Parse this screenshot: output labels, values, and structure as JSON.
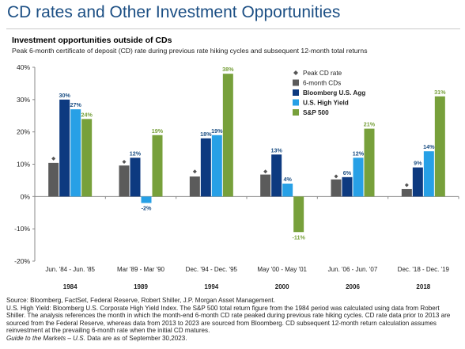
{
  "header": {
    "title": "CD rates and Other Investment Opportunities",
    "subtitle": "Investment opportunities outside of CDs",
    "description": "Peak 6-month certificate of deposit (CD) rate during previous rate hiking cycles and subsequent 12-month total returns"
  },
  "footer": {
    "source": "Source: Bloomberg, FactSet, Federal Reserve, Robert Shiller, J.P. Morgan Asset Management.",
    "note": "U.S. High Yield: Bloomberg U.S. Corporate High Yield Index. The S&P 500 total return figure from the 1984 period was calculated using data from Robert Shiller. The analysis references the month in which the month-end 6-month CD rate peaked during previous rate hiking cycles. CD rate data prior to 2013 are sourced from the Federal Reserve, whereas data from 2013 to 2023 are sourced from Bloomberg. CD subsequent 12-month return calculation assumes reinvestment at the prevailing 6-month rate when the initial CD matures.",
    "guide": "Guide to the Markets – U.S.",
    "date_note": " Data are as of September 30,2023."
  },
  "colors": {
    "title": "#1c4f84",
    "cd": "#5b5b5b",
    "agg": "#0d3a80",
    "hy": "#27a0e6",
    "sp": "#77a03b",
    "label": "#1c4f84",
    "label_sp": "#77a03b"
  },
  "chart_data": {
    "type": "bar",
    "ylim": [
      -20,
      40
    ],
    "yticks": [
      -20,
      -10,
      0,
      10,
      20,
      30,
      40
    ],
    "ytick_labels": [
      "-20%",
      "-10%",
      "0%",
      "10%",
      "20%",
      "30%",
      "40%"
    ],
    "categories": [
      "Jun. '84 - Jun. '85",
      "Mar '89 - Mar '90",
      "Dec. '94 - Dec. '95",
      "May '00 - May '01",
      "Jun. '06 - Jun. '07",
      "Dec. '18 - Dec. '19"
    ],
    "year_labels": [
      "1984",
      "1989",
      "1994",
      "2000",
      "2006",
      "2018"
    ],
    "peak_cd_rate": [
      11.0,
      10.0,
      7.0,
      7.0,
      5.5,
      2.8
    ],
    "legend": [
      "Peak CD rate",
      "6-month CDs",
      "Bloomberg U.S. Agg",
      "U.S. High Yield",
      "S&P 500"
    ],
    "series": [
      {
        "name": "6-month CDs",
        "values": [
          10.4,
          9.6,
          6.2,
          6.8,
          5.3,
          2.3
        ],
        "labels": [
          "",
          "",
          "",
          "",
          "",
          ""
        ]
      },
      {
        "name": "Bloomberg U.S. Agg",
        "values": [
          30,
          12,
          18,
          13,
          6,
          9
        ],
        "labels": [
          "30%",
          "12%",
          "18%",
          "13%",
          "6%",
          "9%"
        ]
      },
      {
        "name": "U.S. High Yield",
        "values": [
          27,
          -2,
          19,
          4,
          12,
          14
        ],
        "labels": [
          "27%",
          "-2%",
          "19%",
          "4%",
          "12%",
          "14%"
        ]
      },
      {
        "name": "S&P 500",
        "values": [
          24,
          19,
          38,
          -11,
          21,
          31
        ],
        "labels": [
          "24%",
          "19%",
          "38%",
          "-11%",
          "21%",
          "31%"
        ]
      }
    ]
  }
}
